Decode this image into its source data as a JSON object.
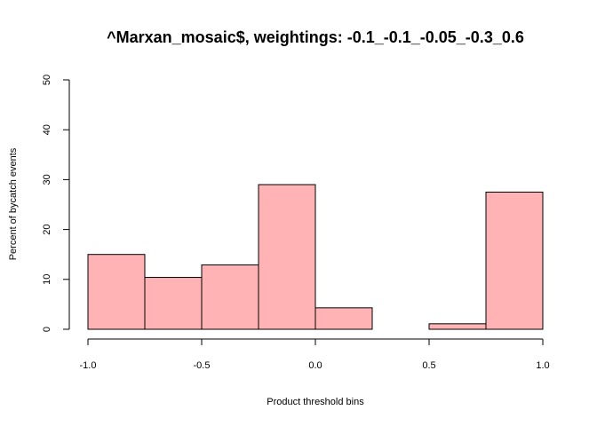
{
  "chart_data": {
    "type": "bar",
    "title": "^Marxan_mosaic$, weightings: -0.1_-0.1_-0.05_-0.3_0.6",
    "xlabel": "Product threshold bins",
    "ylabel": "Percent of bycatch events",
    "bins": [
      {
        "x0": -1.0,
        "x1": -0.75,
        "value": 15.0
      },
      {
        "x0": -0.75,
        "x1": -0.5,
        "value": 10.4
      },
      {
        "x0": -0.5,
        "x1": -0.25,
        "value": 12.9
      },
      {
        "x0": -0.25,
        "x1": 0.0,
        "value": 29.0
      },
      {
        "x0": 0.0,
        "x1": 0.25,
        "value": 4.3
      },
      {
        "x0": 0.25,
        "x1": 0.5,
        "value": 0.0
      },
      {
        "x0": 0.5,
        "x1": 0.75,
        "value": 1.1
      },
      {
        "x0": 0.75,
        "x1": 1.0,
        "value": 27.5
      }
    ],
    "xlim": [
      -1.0,
      1.0
    ],
    "ylim": [
      0,
      50
    ],
    "xticks": [
      -1.0,
      -0.5,
      0.0,
      0.5,
      1.0
    ],
    "xtick_labels": [
      "-1.0",
      "-0.5",
      "0.0",
      "0.5",
      "1.0"
    ],
    "yticks": [
      0,
      10,
      20,
      30,
      40,
      50
    ],
    "ytick_labels": [
      "0",
      "10",
      "20",
      "30",
      "40",
      "50"
    ],
    "bar_fill": "#ffb3b5",
    "bar_stroke": "#000000",
    "grid": false
  }
}
